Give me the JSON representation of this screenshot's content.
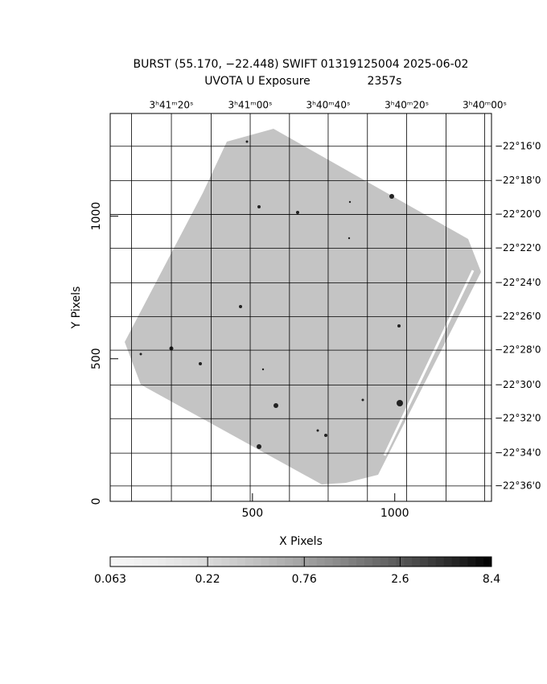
{
  "chart_data": {
    "type": "image",
    "title": "BURST (55.170, −22.448) SWIFT 01319125004 2025-06-02",
    "subtitle": "UVOTA U Exposure",
    "exposure": "2357s",
    "xlabel": "X Pixels",
    "ylabel": "Y Pixels",
    "xlim": [
      0,
      1340
    ],
    "ylim": [
      0,
      1360
    ],
    "xticks": [
      500,
      1000
    ],
    "yticks": [
      0,
      500,
      1000
    ],
    "x2grid": [
      75,
      215,
      355,
      492,
      630,
      766,
      904,
      1042,
      1180,
      1316
    ],
    "x2ticks": [
      {
        "value": 215,
        "label": "3ʰ41ᵐ20ˢ"
      },
      {
        "value": 492,
        "label": "3ʰ41ᵐ00ˢ"
      },
      {
        "value": 766,
        "label": "3ʰ40ᵐ40ˢ"
      },
      {
        "value": 1042,
        "label": "3ʰ40ᵐ20ˢ"
      },
      {
        "value": 1316,
        "label": "3ʰ40ᵐ00ˢ"
      }
    ],
    "y2ticks": [
      {
        "value": 1245,
        "label": "−22°16'0"
      },
      {
        "value": 1124,
        "label": "−22°18'0"
      },
      {
        "value": 1006,
        "label": "−22°20'0"
      },
      {
        "value": 887,
        "label": "−22°22'0"
      },
      {
        "value": 766,
        "label": "−22°24'0"
      },
      {
        "value": 648,
        "label": "−22°26'0"
      },
      {
        "value": 530,
        "label": "−22°28'0"
      },
      {
        "value": 408,
        "label": "−22°30'0"
      },
      {
        "value": 290,
        "label": "−22°32'0"
      },
      {
        "value": 169,
        "label": "−22°34'0"
      },
      {
        "value": 54,
        "label": "−22°36'0"
      }
    ],
    "grid": true,
    "colorbar": {
      "lim": [
        0.063,
        8.4
      ],
      "ticks": [
        0.063,
        0.22,
        0.76,
        2.6,
        8.4
      ],
      "log": true
    }
  }
}
